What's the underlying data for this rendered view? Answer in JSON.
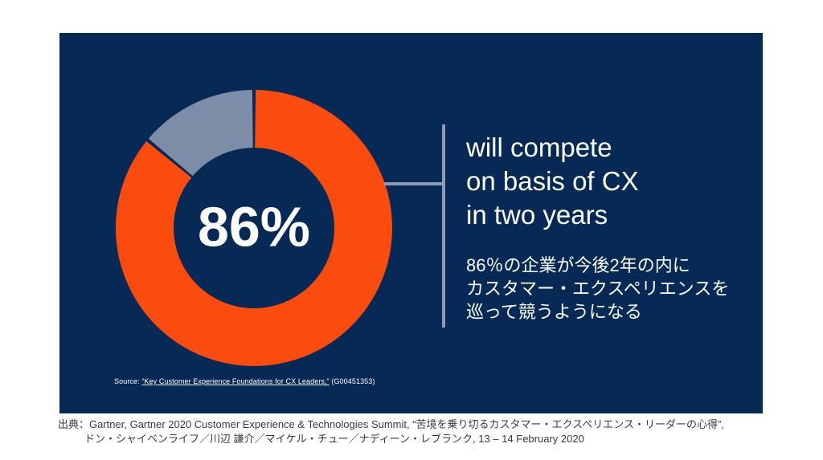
{
  "slide": {
    "background": "#062a55",
    "headline_en": "will compete\non basis of CX\nin two years",
    "headline_ja": "86％の企業が今後2年の内に\nカスタマー・エクスペリエンスを\n巡って競うようになる",
    "source": {
      "prefix": "Source: ",
      "title": "“Key Customer Experience Foundations for CX Leaders,”",
      "suffix": " (G00451353)"
    }
  },
  "chart_data": {
    "type": "pie",
    "donut": true,
    "values": [
      86,
      14
    ],
    "colors": [
      "#fa4c0f",
      "#7d8da8"
    ],
    "center_label": "86%",
    "start_angle_deg": -90,
    "clockwise": true,
    "inner_radius_px": 100,
    "outer_radius_px": 172,
    "annotation": "will compete on basis of CX in two years"
  },
  "caption": {
    "line1": "出典：Gartner, Gartner 2020 Customer Experience & Technologies Summit, “苦境を乗り切るカスタマー・エクスペリエンス・リーダーの心得”,",
    "line2": "ドン・シャイベンライフ／川辺 謙介／マイケル・チュー／ナディーン・レブランク, 13 – 14 February 2020"
  }
}
